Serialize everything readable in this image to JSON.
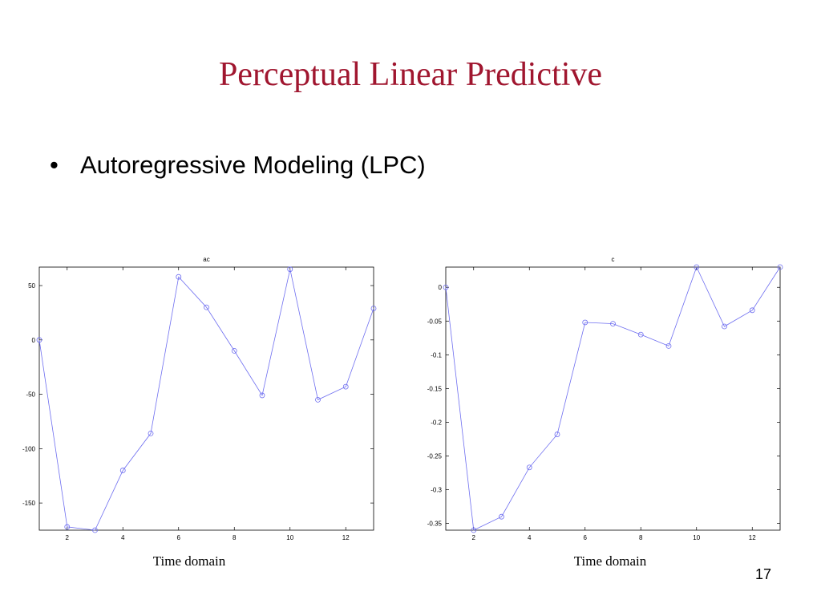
{
  "slide": {
    "title": "Perceptual Linear Predictive",
    "bullet_symbol": "•",
    "bullet_text": "Autoregressive Modeling (LPC)",
    "page_number": "17"
  },
  "colors": {
    "title": "#a0162f",
    "series": "#6e6ef0"
  },
  "chart_data": [
    {
      "type": "line",
      "title": "ac",
      "caption": "Time domain",
      "x": [
        1,
        2,
        3,
        4,
        5,
        6,
        7,
        8,
        9,
        10,
        11,
        12,
        13
      ],
      "values": [
        0,
        -172,
        -175,
        -120,
        -86,
        58,
        30,
        -10,
        -51,
        65,
        -55,
        -43,
        29
      ],
      "xlim": [
        1,
        13
      ],
      "ylim": [
        -175,
        67
      ],
      "xticks": [
        2,
        4,
        6,
        8,
        10,
        12
      ],
      "yticks": [
        50,
        0,
        -50,
        -100,
        -150
      ],
      "marker": "circle",
      "grid": false
    },
    {
      "type": "line",
      "title": "c",
      "caption": "Time domain",
      "x": [
        1,
        2,
        3,
        4,
        5,
        6,
        7,
        8,
        9,
        10,
        11,
        12,
        13
      ],
      "values": [
        0.0,
        -0.36,
        -0.34,
        -0.267,
        -0.218,
        -0.052,
        -0.054,
        -0.07,
        -0.087,
        0.03,
        -0.058,
        -0.034,
        0.03
      ],
      "xlim": [
        1,
        13
      ],
      "ylim": [
        -0.36,
        0.03
      ],
      "xticks": [
        2,
        4,
        6,
        8,
        10,
        12
      ],
      "yticks": [
        0,
        -0.05,
        -0.1,
        -0.15,
        -0.2,
        -0.25,
        -0.3,
        -0.35
      ],
      "marker": "circle",
      "grid": false
    }
  ]
}
